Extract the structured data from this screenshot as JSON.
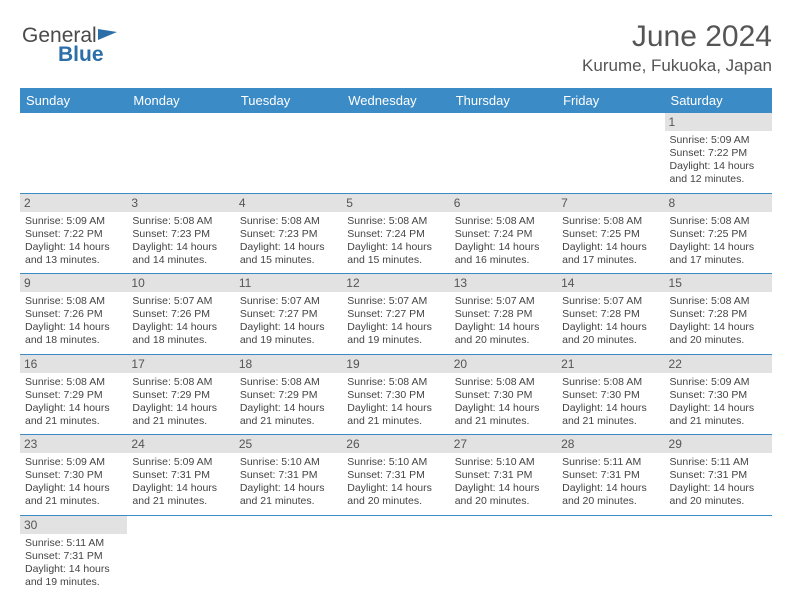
{
  "brand": {
    "part1": "General",
    "part2": "Blue"
  },
  "title": "June 2024",
  "location": "Kurume, Fukuoka, Japan",
  "colors": {
    "header_bg": "#3b8bc6",
    "header_text": "#ffffff",
    "daynum_bg": "#e2e2e2",
    "border": "#3b8bc6",
    "empty_bg": "#ececec"
  },
  "weekdays": [
    "Sunday",
    "Monday",
    "Tuesday",
    "Wednesday",
    "Thursday",
    "Friday",
    "Saturday"
  ],
  "weeks": [
    [
      null,
      null,
      null,
      null,
      null,
      null,
      {
        "n": "1",
        "sr": "Sunrise: 5:09 AM",
        "ss": "Sunset: 7:22 PM",
        "d1": "Daylight: 14 hours",
        "d2": "and 12 minutes."
      }
    ],
    [
      {
        "n": "2",
        "sr": "Sunrise: 5:09 AM",
        "ss": "Sunset: 7:22 PM",
        "d1": "Daylight: 14 hours",
        "d2": "and 13 minutes."
      },
      {
        "n": "3",
        "sr": "Sunrise: 5:08 AM",
        "ss": "Sunset: 7:23 PM",
        "d1": "Daylight: 14 hours",
        "d2": "and 14 minutes."
      },
      {
        "n": "4",
        "sr": "Sunrise: 5:08 AM",
        "ss": "Sunset: 7:23 PM",
        "d1": "Daylight: 14 hours",
        "d2": "and 15 minutes."
      },
      {
        "n": "5",
        "sr": "Sunrise: 5:08 AM",
        "ss": "Sunset: 7:24 PM",
        "d1": "Daylight: 14 hours",
        "d2": "and 15 minutes."
      },
      {
        "n": "6",
        "sr": "Sunrise: 5:08 AM",
        "ss": "Sunset: 7:24 PM",
        "d1": "Daylight: 14 hours",
        "d2": "and 16 minutes."
      },
      {
        "n": "7",
        "sr": "Sunrise: 5:08 AM",
        "ss": "Sunset: 7:25 PM",
        "d1": "Daylight: 14 hours",
        "d2": "and 17 minutes."
      },
      {
        "n": "8",
        "sr": "Sunrise: 5:08 AM",
        "ss": "Sunset: 7:25 PM",
        "d1": "Daylight: 14 hours",
        "d2": "and 17 minutes."
      }
    ],
    [
      {
        "n": "9",
        "sr": "Sunrise: 5:08 AM",
        "ss": "Sunset: 7:26 PM",
        "d1": "Daylight: 14 hours",
        "d2": "and 18 minutes."
      },
      {
        "n": "10",
        "sr": "Sunrise: 5:07 AM",
        "ss": "Sunset: 7:26 PM",
        "d1": "Daylight: 14 hours",
        "d2": "and 18 minutes."
      },
      {
        "n": "11",
        "sr": "Sunrise: 5:07 AM",
        "ss": "Sunset: 7:27 PM",
        "d1": "Daylight: 14 hours",
        "d2": "and 19 minutes."
      },
      {
        "n": "12",
        "sr": "Sunrise: 5:07 AM",
        "ss": "Sunset: 7:27 PM",
        "d1": "Daylight: 14 hours",
        "d2": "and 19 minutes."
      },
      {
        "n": "13",
        "sr": "Sunrise: 5:07 AM",
        "ss": "Sunset: 7:28 PM",
        "d1": "Daylight: 14 hours",
        "d2": "and 20 minutes."
      },
      {
        "n": "14",
        "sr": "Sunrise: 5:07 AM",
        "ss": "Sunset: 7:28 PM",
        "d1": "Daylight: 14 hours",
        "d2": "and 20 minutes."
      },
      {
        "n": "15",
        "sr": "Sunrise: 5:08 AM",
        "ss": "Sunset: 7:28 PM",
        "d1": "Daylight: 14 hours",
        "d2": "and 20 minutes."
      }
    ],
    [
      {
        "n": "16",
        "sr": "Sunrise: 5:08 AM",
        "ss": "Sunset: 7:29 PM",
        "d1": "Daylight: 14 hours",
        "d2": "and 21 minutes."
      },
      {
        "n": "17",
        "sr": "Sunrise: 5:08 AM",
        "ss": "Sunset: 7:29 PM",
        "d1": "Daylight: 14 hours",
        "d2": "and 21 minutes."
      },
      {
        "n": "18",
        "sr": "Sunrise: 5:08 AM",
        "ss": "Sunset: 7:29 PM",
        "d1": "Daylight: 14 hours",
        "d2": "and 21 minutes."
      },
      {
        "n": "19",
        "sr": "Sunrise: 5:08 AM",
        "ss": "Sunset: 7:30 PM",
        "d1": "Daylight: 14 hours",
        "d2": "and 21 minutes."
      },
      {
        "n": "20",
        "sr": "Sunrise: 5:08 AM",
        "ss": "Sunset: 7:30 PM",
        "d1": "Daylight: 14 hours",
        "d2": "and 21 minutes."
      },
      {
        "n": "21",
        "sr": "Sunrise: 5:08 AM",
        "ss": "Sunset: 7:30 PM",
        "d1": "Daylight: 14 hours",
        "d2": "and 21 minutes."
      },
      {
        "n": "22",
        "sr": "Sunrise: 5:09 AM",
        "ss": "Sunset: 7:30 PM",
        "d1": "Daylight: 14 hours",
        "d2": "and 21 minutes."
      }
    ],
    [
      {
        "n": "23",
        "sr": "Sunrise: 5:09 AM",
        "ss": "Sunset: 7:30 PM",
        "d1": "Daylight: 14 hours",
        "d2": "and 21 minutes."
      },
      {
        "n": "24",
        "sr": "Sunrise: 5:09 AM",
        "ss": "Sunset: 7:31 PM",
        "d1": "Daylight: 14 hours",
        "d2": "and 21 minutes."
      },
      {
        "n": "25",
        "sr": "Sunrise: 5:10 AM",
        "ss": "Sunset: 7:31 PM",
        "d1": "Daylight: 14 hours",
        "d2": "and 21 minutes."
      },
      {
        "n": "26",
        "sr": "Sunrise: 5:10 AM",
        "ss": "Sunset: 7:31 PM",
        "d1": "Daylight: 14 hours",
        "d2": "and 20 minutes."
      },
      {
        "n": "27",
        "sr": "Sunrise: 5:10 AM",
        "ss": "Sunset: 7:31 PM",
        "d1": "Daylight: 14 hours",
        "d2": "and 20 minutes."
      },
      {
        "n": "28",
        "sr": "Sunrise: 5:11 AM",
        "ss": "Sunset: 7:31 PM",
        "d1": "Daylight: 14 hours",
        "d2": "and 20 minutes."
      },
      {
        "n": "29",
        "sr": "Sunrise: 5:11 AM",
        "ss": "Sunset: 7:31 PM",
        "d1": "Daylight: 14 hours",
        "d2": "and 20 minutes."
      }
    ],
    [
      {
        "n": "30",
        "sr": "Sunrise: 5:11 AM",
        "ss": "Sunset: 7:31 PM",
        "d1": "Daylight: 14 hours",
        "d2": "and 19 minutes."
      },
      null,
      null,
      null,
      null,
      null,
      null
    ]
  ]
}
